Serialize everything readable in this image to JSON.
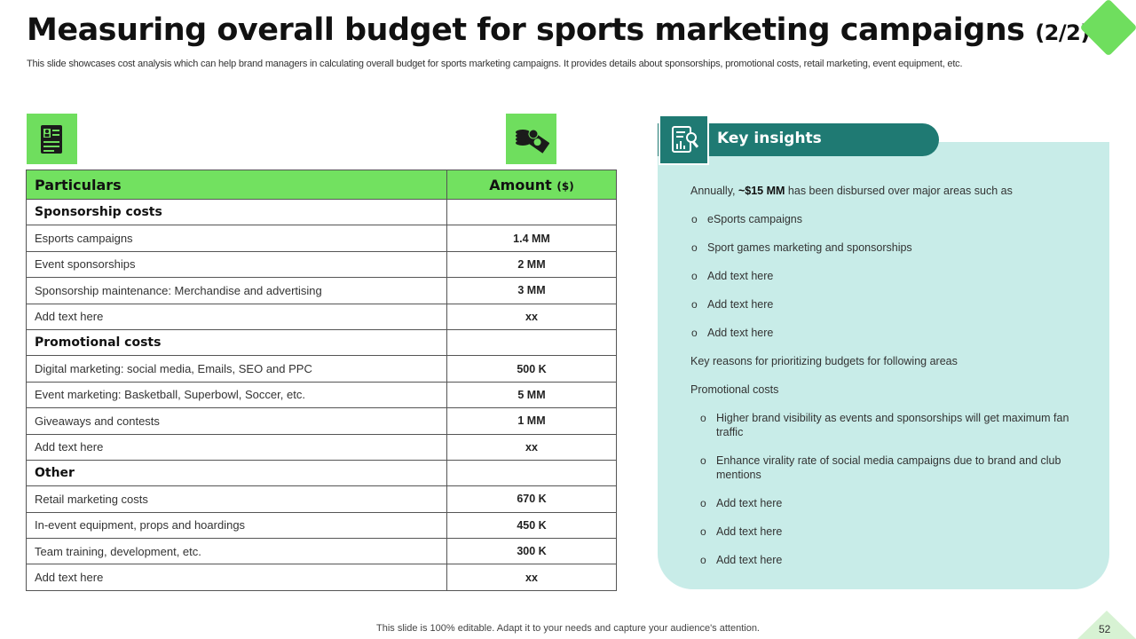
{
  "header": {
    "title": "Measuring overall budget for sports marketing campaigns",
    "title_part": "(2/2)",
    "subtitle": "This slide showcases cost analysis which can help brand managers in calculating overall budget for sports marketing campaigns. It provides details about sponsorships, promotional costs, retail marketing, event equipment, etc."
  },
  "icons": {
    "particulars_icon": "document-profile-icon",
    "amount_icon": "money-coins-icon",
    "insights_icon": "report-magnifier-icon"
  },
  "table": {
    "col_particulars": "Particulars",
    "col_amount": "Amount",
    "col_amount_unit": "($)",
    "sections": [
      {
        "name": "Sponsorship costs",
        "rows": [
          {
            "label": "Esports campaigns",
            "amount": "1.4 MM"
          },
          {
            "label": "Event sponsorships",
            "amount": "2 MM"
          },
          {
            "label": "Sponsorship maintenance: Merchandise and advertising",
            "amount": "3 MM"
          },
          {
            "label": "Add text here",
            "amount": "xx"
          }
        ]
      },
      {
        "name": "Promotional costs",
        "rows": [
          {
            "label": "Digital marketing: social media, Emails, SEO and PPC",
            "amount": "500 K"
          },
          {
            "label": "Event marketing: Basketball, Superbowl, Soccer, etc.",
            "amount": "5 MM"
          },
          {
            "label": "Giveaways and contests",
            "amount": "1 MM"
          },
          {
            "label": "Add text here",
            "amount": "xx"
          }
        ]
      },
      {
        "name": "Other",
        "rows": [
          {
            "label": "Retail marketing costs",
            "amount": "670 K"
          },
          {
            "label": "In-event equipment, props and hoardings",
            "amount": "450 K"
          },
          {
            "label": "Team training, development, etc.",
            "amount": "300 K"
          },
          {
            "label": "Add text here",
            "amount": "xx"
          }
        ]
      }
    ]
  },
  "insights": {
    "title": "Key insights",
    "intro_prefix": "Annually, ",
    "intro_bold": "~$15 MM",
    "intro_suffix": " has been disbursed over major areas such as",
    "bullets": [
      "eSports campaigns",
      "Sport games marketing and sponsorships",
      "Add text here",
      "Add text here",
      "Add text here"
    ],
    "reasons_heading": "Key reasons for prioritizing budgets for following areas",
    "promo_heading": "Promotional costs",
    "promo_bullets": [
      "Higher brand visibility as events and sponsorships will get maximum fan traffic",
      "Enhance virality rate of social media campaigns due to brand and club mentions",
      "Add text here",
      "Add text here",
      "Add text here"
    ],
    "bullet_glyph": "o"
  },
  "footer": {
    "note": "This slide is 100% editable. Adapt it to your needs and capture your audience's attention.",
    "page_number": "52"
  },
  "colors": {
    "accent_green": "#6fde5e",
    "teal": "#1f7a73",
    "panel_bg": "#c8ece8"
  }
}
